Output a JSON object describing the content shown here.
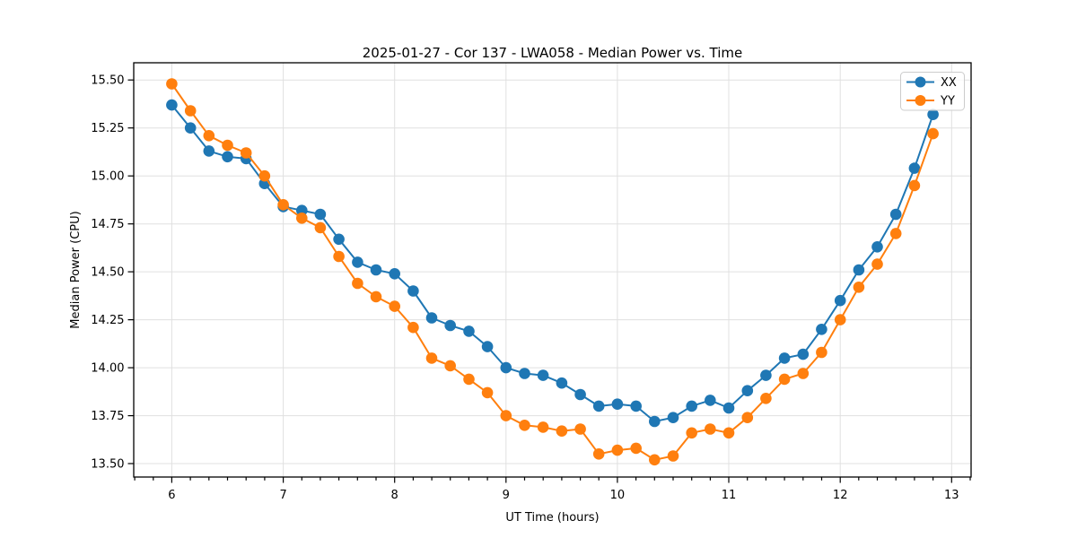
{
  "window": {
    "background": "#ffffff"
  },
  "chart_data": {
    "type": "line",
    "title": "2025-01-27 - Cor 137 - LWA058 - Median Power vs. Time",
    "xlabel": "UT Time (hours)",
    "ylabel": "Median Power (CPU)",
    "xlim": [
      5.658,
      13.175
    ],
    "ylim": [
      13.43,
      15.59
    ],
    "grid": true,
    "x_major_ticks": [
      6,
      7,
      8,
      9,
      10,
      11,
      12,
      13
    ],
    "x_minor_tick_interval_hours": 0.16667,
    "y_tick_values": [
      13.5,
      13.75,
      14.0,
      14.25,
      14.5,
      14.75,
      15.0,
      15.25,
      15.5
    ],
    "y_tick_labels": [
      "13.50",
      "13.75",
      "14.00",
      "14.25",
      "14.50",
      "14.75",
      "15.00",
      "15.25",
      "15.50"
    ],
    "legend": {
      "position": "upper right",
      "entries": [
        "XX",
        "YY"
      ]
    },
    "x": [
      6.0,
      6.167,
      6.333,
      6.5,
      6.667,
      6.833,
      7.0,
      7.167,
      7.333,
      7.5,
      7.667,
      7.833,
      8.0,
      8.167,
      8.333,
      8.5,
      8.667,
      8.833,
      9.0,
      9.167,
      9.333,
      9.5,
      9.667,
      9.833,
      10.0,
      10.167,
      10.333,
      10.5,
      10.667,
      10.833,
      11.0,
      11.167,
      11.333,
      11.5,
      11.667,
      11.833,
      12.0,
      12.167,
      12.333,
      12.5,
      12.667,
      12.833
    ],
    "series": [
      {
        "name": "XX",
        "color": "#1f77b4",
        "values": [
          15.37,
          15.25,
          15.13,
          15.1,
          15.09,
          14.96,
          14.84,
          14.82,
          14.8,
          14.67,
          14.55,
          14.51,
          14.49,
          14.4,
          14.26,
          14.22,
          14.19,
          14.11,
          14.0,
          13.97,
          13.96,
          13.92,
          13.86,
          13.8,
          13.81,
          13.8,
          13.72,
          13.74,
          13.8,
          13.83,
          13.79,
          13.88,
          13.96,
          14.05,
          14.07,
          14.2,
          14.35,
          14.51,
          14.63,
          14.8,
          15.04,
          15.32
        ]
      },
      {
        "name": "YY",
        "color": "#ff7f0e",
        "values": [
          15.48,
          15.34,
          15.21,
          15.16,
          15.12,
          15.0,
          14.85,
          14.78,
          14.73,
          14.58,
          14.44,
          14.37,
          14.32,
          14.21,
          14.05,
          14.01,
          13.94,
          13.87,
          13.75,
          13.7,
          13.69,
          13.67,
          13.68,
          13.55,
          13.57,
          13.58,
          13.52,
          13.54,
          13.66,
          13.68,
          13.66,
          13.74,
          13.84,
          13.94,
          13.97,
          14.08,
          14.25,
          14.42,
          14.54,
          14.7,
          14.95,
          15.22
        ]
      }
    ],
    "styles": {
      "grid_color": "#e0e0e0",
      "spine_color": "#000000",
      "marker_radius": 6.3,
      "line_width": 2,
      "legend_border": "#cccccc",
      "legend_fill_opacity": 0.8
    }
  }
}
